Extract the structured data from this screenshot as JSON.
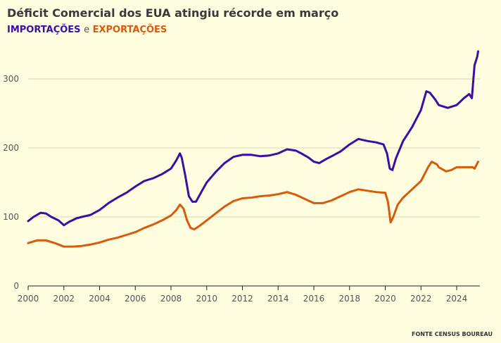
{
  "title": "Déficit Comercial dos EUA atingiu récorde em março",
  "subtitle": {
    "imports_label": "IMPORTAÇÕES",
    "conjunction": "e",
    "exports_label": "EXPORTAÇÕES"
  },
  "source": "FONTE CENSUS BOUREAU",
  "chart_data": {
    "type": "line",
    "title": "Déficit Comercial dos EUA atingiu récorde em março",
    "xlabel": "",
    "ylabel": "",
    "xlim": [
      2000,
      2025.3
    ],
    "ylim": [
      0,
      350
    ],
    "x_ticks": [
      2000,
      2002,
      2004,
      2006,
      2008,
      2010,
      2012,
      2014,
      2016,
      2018,
      2020,
      2022,
      2024
    ],
    "x_tick_labels": [
      "2000",
      "2002",
      "2004",
      "2006",
      "2008",
      "2010",
      "2012",
      "2014",
      "2016",
      "2018",
      "2020",
      "2022",
      "2024"
    ],
    "y_ticks": [
      0,
      100,
      200,
      300
    ],
    "y_tick_labels": [
      "0",
      "100",
      "200",
      "300"
    ],
    "grid": "horizontal",
    "colors": {
      "imports": "#3b0ea8",
      "exports": "#d85a0a",
      "grid": "#dcdcb0"
    },
    "series": [
      {
        "name": "IMPORTAÇÕES",
        "points": [
          [
            2000.0,
            94
          ],
          [
            2000.3,
            100
          ],
          [
            2000.7,
            106
          ],
          [
            2001.0,
            105
          ],
          [
            2001.3,
            100
          ],
          [
            2001.7,
            95
          ],
          [
            2002.0,
            88
          ],
          [
            2002.3,
            93
          ],
          [
            2002.7,
            98
          ],
          [
            2003.0,
            100
          ],
          [
            2003.5,
            103
          ],
          [
            2004.0,
            110
          ],
          [
            2004.5,
            120
          ],
          [
            2005.0,
            128
          ],
          [
            2005.5,
            135
          ],
          [
            2006.0,
            144
          ],
          [
            2006.5,
            152
          ],
          [
            2007.0,
            156
          ],
          [
            2007.5,
            162
          ],
          [
            2008.0,
            170
          ],
          [
            2008.3,
            182
          ],
          [
            2008.5,
            192
          ],
          [
            2008.6,
            186
          ],
          [
            2008.8,
            160
          ],
          [
            2009.0,
            130
          ],
          [
            2009.2,
            122
          ],
          [
            2009.4,
            122
          ],
          [
            2009.7,
            136
          ],
          [
            2010.0,
            150
          ],
          [
            2010.5,
            165
          ],
          [
            2011.0,
            178
          ],
          [
            2011.5,
            187
          ],
          [
            2012.0,
            190
          ],
          [
            2012.5,
            190
          ],
          [
            2013.0,
            188
          ],
          [
            2013.5,
            189
          ],
          [
            2014.0,
            192
          ],
          [
            2014.5,
            198
          ],
          [
            2015.0,
            196
          ],
          [
            2015.3,
            192
          ],
          [
            2015.7,
            186
          ],
          [
            2016.0,
            180
          ],
          [
            2016.3,
            178
          ],
          [
            2016.7,
            184
          ],
          [
            2017.0,
            188
          ],
          [
            2017.5,
            195
          ],
          [
            2018.0,
            205
          ],
          [
            2018.5,
            213
          ],
          [
            2019.0,
            210
          ],
          [
            2019.5,
            208
          ],
          [
            2019.9,
            205
          ],
          [
            2020.1,
            192
          ],
          [
            2020.25,
            170
          ],
          [
            2020.4,
            168
          ],
          [
            2020.6,
            185
          ],
          [
            2021.0,
            210
          ],
          [
            2021.5,
            230
          ],
          [
            2022.0,
            255
          ],
          [
            2022.3,
            282
          ],
          [
            2022.5,
            280
          ],
          [
            2022.8,
            270
          ],
          [
            2023.0,
            262
          ],
          [
            2023.5,
            258
          ],
          [
            2024.0,
            262
          ],
          [
            2024.4,
            272
          ],
          [
            2024.7,
            278
          ],
          [
            2024.85,
            272
          ],
          [
            2025.0,
            320
          ],
          [
            2025.15,
            332
          ],
          [
            2025.2,
            340
          ]
        ]
      },
      {
        "name": "EXPORTAÇÕES",
        "points": [
          [
            2000.0,
            62
          ],
          [
            2000.5,
            66
          ],
          [
            2001.0,
            66
          ],
          [
            2001.5,
            62
          ],
          [
            2002.0,
            57
          ],
          [
            2002.5,
            57
          ],
          [
            2003.0,
            58
          ],
          [
            2003.5,
            60
          ],
          [
            2004.0,
            63
          ],
          [
            2004.5,
            67
          ],
          [
            2005.0,
            70
          ],
          [
            2005.5,
            74
          ],
          [
            2006.0,
            78
          ],
          [
            2006.5,
            84
          ],
          [
            2007.0,
            89
          ],
          [
            2007.5,
            95
          ],
          [
            2008.0,
            102
          ],
          [
            2008.3,
            110
          ],
          [
            2008.5,
            118
          ],
          [
            2008.7,
            112
          ],
          [
            2008.9,
            95
          ],
          [
            2009.1,
            84
          ],
          [
            2009.3,
            82
          ],
          [
            2009.6,
            87
          ],
          [
            2010.0,
            95
          ],
          [
            2010.5,
            105
          ],
          [
            2011.0,
            115
          ],
          [
            2011.5,
            123
          ],
          [
            2012.0,
            127
          ],
          [
            2012.5,
            128
          ],
          [
            2013.0,
            130
          ],
          [
            2013.5,
            131
          ],
          [
            2014.0,
            133
          ],
          [
            2014.5,
            136
          ],
          [
            2015.0,
            132
          ],
          [
            2015.5,
            126
          ],
          [
            2016.0,
            120
          ],
          [
            2016.5,
            120
          ],
          [
            2017.0,
            124
          ],
          [
            2017.5,
            130
          ],
          [
            2018.0,
            136
          ],
          [
            2018.5,
            140
          ],
          [
            2019.0,
            138
          ],
          [
            2019.5,
            136
          ],
          [
            2020.0,
            135
          ],
          [
            2020.15,
            122
          ],
          [
            2020.3,
            92
          ],
          [
            2020.45,
            100
          ],
          [
            2020.7,
            118
          ],
          [
            2021.0,
            128
          ],
          [
            2021.5,
            140
          ],
          [
            2022.0,
            152
          ],
          [
            2022.4,
            172
          ],
          [
            2022.6,
            180
          ],
          [
            2022.9,
            176
          ],
          [
            2023.0,
            172
          ],
          [
            2023.4,
            166
          ],
          [
            2023.7,
            168
          ],
          [
            2024.0,
            172
          ],
          [
            2024.5,
            172
          ],
          [
            2024.9,
            172
          ],
          [
            2025.0,
            170
          ],
          [
            2025.2,
            180
          ]
        ]
      }
    ]
  }
}
